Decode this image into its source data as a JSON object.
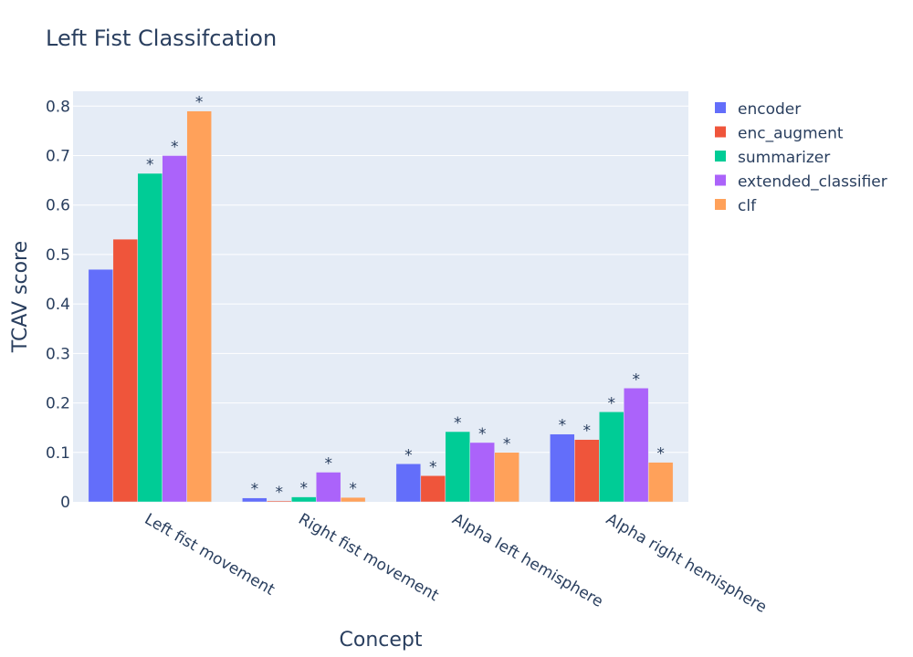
{
  "chart_data": {
    "type": "bar",
    "title": "Left Fist Classifcation",
    "xlabel": "Concept",
    "ylabel": "TCAV score",
    "ylim": [
      0,
      0.83
    ],
    "yticks": [
      0,
      0.1,
      0.2,
      0.3,
      0.4,
      0.5,
      0.6,
      0.7,
      0.8
    ],
    "ytick_labels": [
      "0",
      "0.1",
      "0.2",
      "0.3",
      "0.4",
      "0.5",
      "0.6",
      "0.7",
      "0.8"
    ],
    "categories": [
      "Left fist movement",
      "Right fist movement",
      "Alpha left hemisphere",
      "Alpha right hemisphere"
    ],
    "series": [
      {
        "name": "encoder",
        "color": "#636efa",
        "values": [
          0.47,
          0.008,
          0.077,
          0.137
        ],
        "significant": [
          false,
          true,
          true,
          true
        ]
      },
      {
        "name": "enc_augment",
        "color": "#ef553b",
        "values": [
          0.531,
          0.002,
          0.053,
          0.126
        ],
        "significant": [
          false,
          true,
          true,
          true
        ]
      },
      {
        "name": "summarizer",
        "color": "#00cc96",
        "values": [
          0.664,
          0.01,
          0.142,
          0.182
        ],
        "significant": [
          true,
          true,
          true,
          true
        ]
      },
      {
        "name": "extended_classifier",
        "color": "#ab63fa",
        "values": [
          0.7,
          0.06,
          0.12,
          0.23
        ],
        "significant": [
          true,
          true,
          true,
          true
        ]
      },
      {
        "name": "clf",
        "color": "#ffa15a",
        "values": [
          0.79,
          0.009,
          0.1,
          0.08
        ],
        "significant": [
          true,
          true,
          true,
          true
        ]
      }
    ],
    "significance_marker": "*",
    "grid": true,
    "legend_position": "right",
    "background": "#e5ecf6"
  }
}
